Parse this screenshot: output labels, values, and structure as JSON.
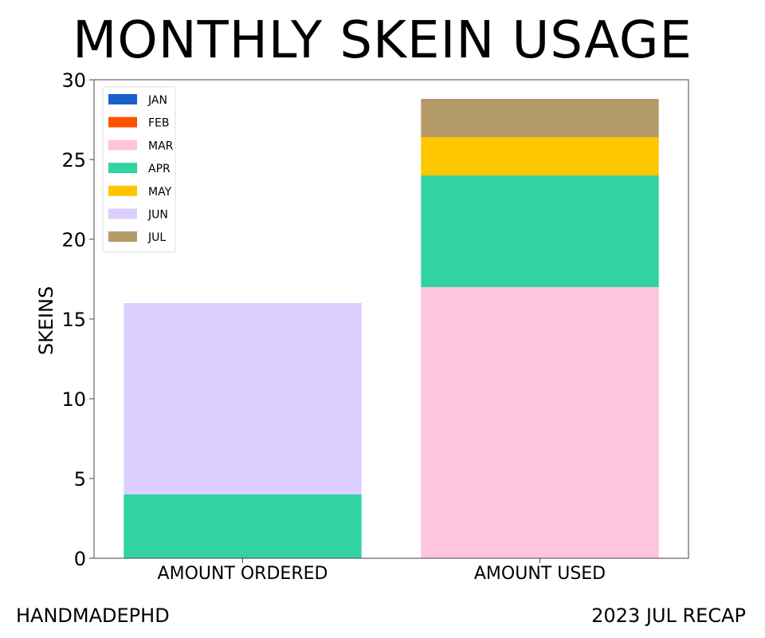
{
  "footer": {
    "left": "HANDMADEPHD",
    "right": "2023 JUL RECAP"
  },
  "chart_data": {
    "type": "bar",
    "stacked": true,
    "title": "MONTHLY SKEIN USAGE",
    "xlabel": "",
    "ylabel": "SKEINS",
    "categories": [
      "AMOUNT ORDERED",
      "AMOUNT USED"
    ],
    "ylim": [
      0,
      30
    ],
    "yticks": [
      0,
      5,
      10,
      15,
      20,
      25,
      30
    ],
    "grid": false,
    "legend_position": "top-left",
    "series": [
      {
        "name": "JAN",
        "color": "#1a5fcc",
        "values": [
          0,
          0
        ]
      },
      {
        "name": "FEB",
        "color": "#ff5200",
        "values": [
          0,
          0
        ]
      },
      {
        "name": "MAR",
        "color": "#ffc4de",
        "values": [
          0,
          17
        ]
      },
      {
        "name": "APR",
        "color": "#32d3a3",
        "values": [
          4,
          7
        ]
      },
      {
        "name": "MAY",
        "color": "#ffc700",
        "values": [
          0,
          2.4
        ]
      },
      {
        "name": "JUN",
        "color": "#dccfff",
        "values": [
          12,
          0
        ]
      },
      {
        "name": "JUL",
        "color": "#b49a67",
        "values": [
          0,
          2.4
        ]
      }
    ]
  }
}
